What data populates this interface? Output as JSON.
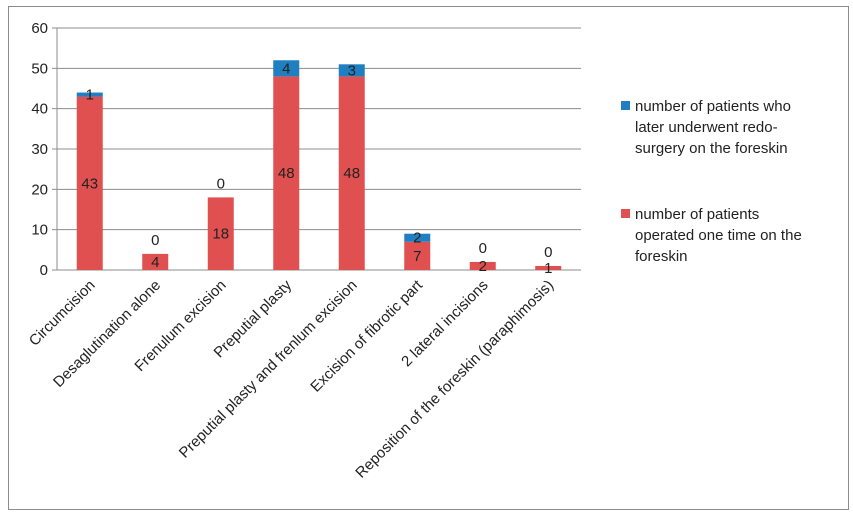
{
  "colors": {
    "redo": "#1f7fc1",
    "once": "#e05050",
    "grid": "#8c8c8c",
    "text": "#222222"
  },
  "chart_data": {
    "type": "bar",
    "stacked": true,
    "categories": [
      "Circumcision",
      "Desaglutination alone",
      "Frenulum excision",
      "Preputial plasty",
      "Preputial plasty and frenlum excision",
      "Excision of fibrotic part",
      "2 lateral incisions",
      "Reposition of the foreskin (paraphimosis)"
    ],
    "series": [
      {
        "name": "number of patients operated one time on the foreskin",
        "color": "#e05050",
        "values": [
          43,
          4,
          18,
          48,
          48,
          7,
          2,
          1
        ]
      },
      {
        "name": "number of patients who later underwent redo-surgery on the foreskin",
        "color": "#1f7fc1",
        "values": [
          1,
          0,
          0,
          4,
          3,
          2,
          0,
          0
        ]
      }
    ],
    "yticks": [
      0,
      10,
      20,
      30,
      40,
      50,
      60
    ],
    "ylim": [
      0,
      60
    ],
    "grid": true,
    "legend_position": "right",
    "data_labels": true
  },
  "legend": {
    "items": [
      {
        "lines": [
          "number of patients who",
          "later underwent redo-",
          "surgery on the foreskin"
        ],
        "color": "#1f7fc1"
      },
      {
        "lines": [
          "number of patients",
          "operated one time on the",
          "foreskin"
        ],
        "color": "#e05050"
      }
    ]
  }
}
